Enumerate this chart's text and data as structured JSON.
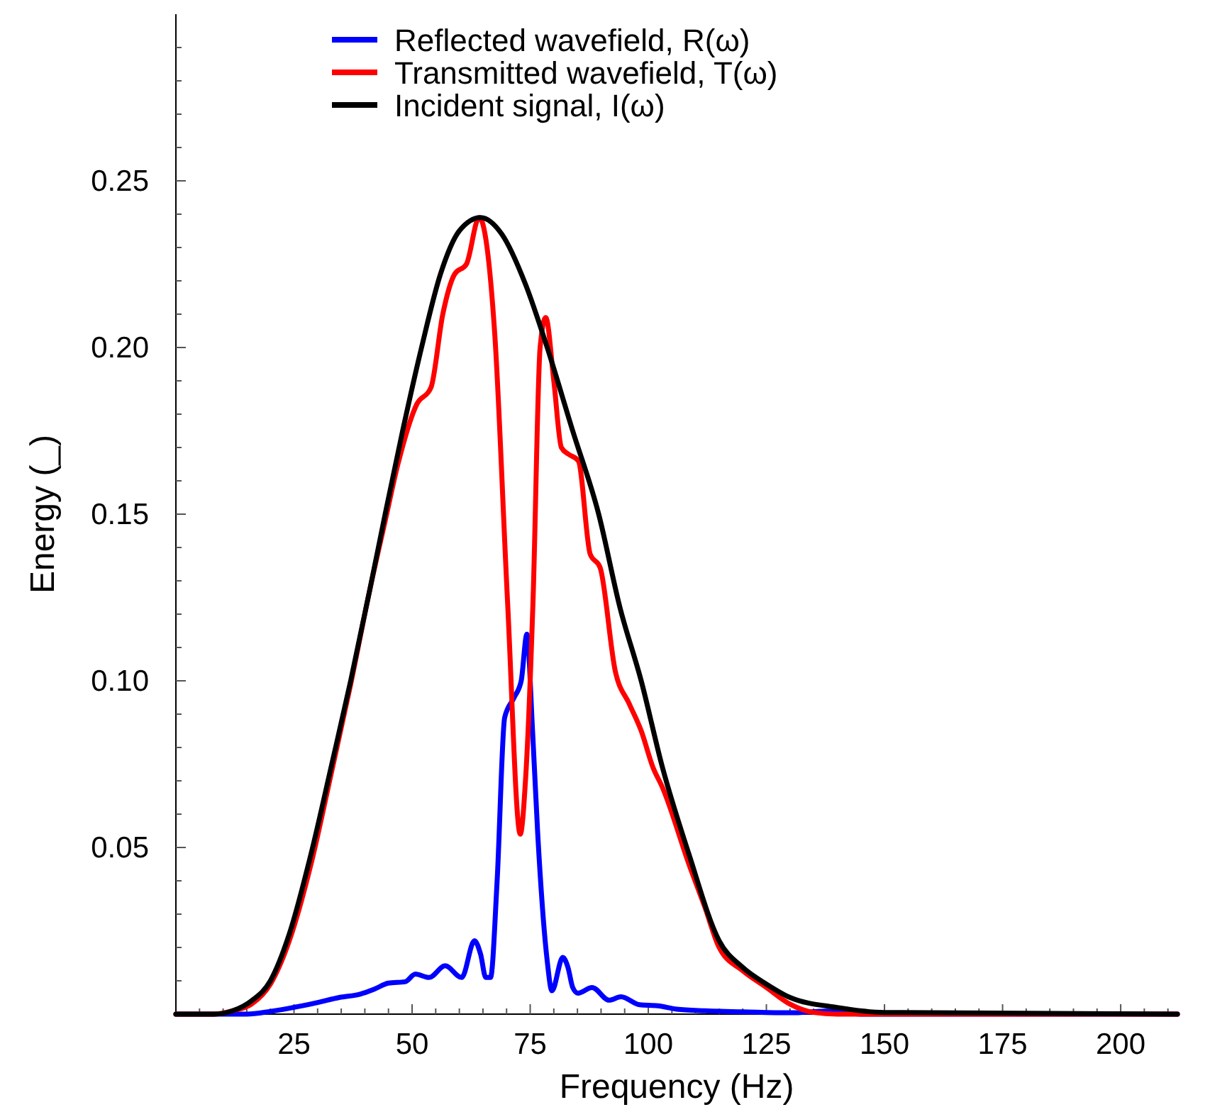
{
  "chart_data": {
    "type": "line",
    "xlabel": "Frequency (Hz)",
    "ylabel": "Energy (_)",
    "xlim": [
      0,
      212
    ],
    "ylim": [
      0,
      0.3
    ],
    "xticks": [
      {
        "value": 5,
        "label": null
      },
      {
        "value": 10,
        "label": null
      },
      {
        "value": 15,
        "label": null
      },
      {
        "value": 20,
        "label": null
      },
      25,
      {
        "value": 30,
        "label": null
      },
      {
        "value": 35,
        "label": null
      },
      {
        "value": 40,
        "label": null
      },
      {
        "value": 45,
        "label": null
      },
      50,
      {
        "value": 55,
        "label": null
      },
      {
        "value": 60,
        "label": null
      },
      {
        "value": 65,
        "label": null
      },
      {
        "value": 70,
        "label": null
      },
      75,
      {
        "value": 80,
        "label": null
      },
      {
        "value": 85,
        "label": null
      },
      {
        "value": 90,
        "label": null
      },
      {
        "value": 95,
        "label": null
      },
      100,
      {
        "value": 105,
        "label": null
      },
      {
        "value": 110,
        "label": null
      },
      {
        "value": 115,
        "label": null
      },
      {
        "value": 120,
        "label": null
      },
      125,
      {
        "value": 130,
        "label": null
      },
      {
        "value": 135,
        "label": null
      },
      {
        "value": 140,
        "label": null
      },
      {
        "value": 145,
        "label": null
      },
      150,
      {
        "value": 155,
        "label": null
      },
      {
        "value": 160,
        "label": null
      },
      {
        "value": 165,
        "label": null
      },
      {
        "value": 170,
        "label": null
      },
      175,
      {
        "value": 180,
        "label": null
      },
      {
        "value": 185,
        "label": null
      },
      {
        "value": 190,
        "label": null
      },
      {
        "value": 195,
        "label": null
      },
      200,
      {
        "value": 205,
        "label": null
      },
      {
        "value": 210,
        "label": null
      }
    ],
    "yticks": [
      {
        "value": 0.01,
        "label": null
      },
      {
        "value": 0.02,
        "label": null
      },
      {
        "value": 0.03,
        "label": null
      },
      {
        "value": 0.04,
        "label": null
      },
      0.05,
      {
        "value": 0.06,
        "label": null
      },
      {
        "value": 0.07,
        "label": null
      },
      {
        "value": 0.08,
        "label": null
      },
      {
        "value": 0.09,
        "label": null
      },
      {
        "value": 0.1,
        "label": "0.10"
      },
      {
        "value": 0.11,
        "label": null
      },
      {
        "value": 0.12,
        "label": null
      },
      {
        "value": 0.13,
        "label": null
      },
      {
        "value": 0.14,
        "label": null
      },
      0.15,
      {
        "value": 0.16,
        "label": null
      },
      {
        "value": 0.17,
        "label": null
      },
      {
        "value": 0.18,
        "label": null
      },
      {
        "value": 0.19,
        "label": null
      },
      {
        "value": 0.2,
        "label": "0.20"
      },
      {
        "value": 0.21,
        "label": null
      },
      {
        "value": 0.22,
        "label": null
      },
      {
        "value": 0.23,
        "label": null
      },
      {
        "value": 0.24,
        "label": null
      },
      0.25,
      {
        "value": 0.26,
        "label": null
      },
      {
        "value": 0.27,
        "label": null
      },
      {
        "value": 0.28,
        "label": null
      },
      {
        "value": 0.29,
        "label": null
      }
    ],
    "grid": false,
    "legend": "top",
    "marker": "none",
    "line_style": "solid",
    "series": [
      {
        "name": "Reflected wavefield, R(ω)",
        "color": "#0000ff",
        "x": [
          0,
          15,
          20,
          26,
          30,
          34.6,
          39,
          42,
          45,
          48.5,
          50.7,
          53.6,
          57,
          60.5,
          63.2,
          64.5,
          65.6,
          66.6,
          68,
          69.6,
          71.6,
          73.1,
          74.3,
          75.5,
          76.6,
          78.6,
          79.6,
          81.9,
          83,
          84,
          85.1,
          88.1,
          91.7,
          94.2,
          98.2,
          102,
          106,
          112,
          120,
          130,
          138,
          145,
          212
        ],
        "values": [
          0,
          0,
          0.0008,
          0.0023,
          0.0035,
          0.005,
          0.006,
          0.0075,
          0.0093,
          0.0097,
          0.012,
          0.011,
          0.0145,
          0.011,
          0.022,
          0.018,
          0.011,
          0.011,
          0.04,
          0.089,
          0.095,
          0.1,
          0.114,
          0.085,
          0.054,
          0.016,
          0.007,
          0.017,
          0.014,
          0.008,
          0.0063,
          0.008,
          0.0042,
          0.0052,
          0.0028,
          0.0025,
          0.0015,
          0.001,
          0.0007,
          0.0004,
          0.0009,
          0,
          0
        ]
      },
      {
        "name": "Transmitted wavefield, T(ω)",
        "color": "#ff0000",
        "x": [
          0,
          8,
          12,
          16,
          20,
          24,
          28.6,
          33,
          37,
          41,
          44.3,
          47,
          51,
          54,
          56.5,
          59,
          61.5,
          64.2,
          67.5,
          70.2,
          72.9,
          74,
          75.6,
          77.1,
          78.3,
          80,
          81.6,
          83.1,
          85.2,
          87.7,
          89.8,
          93,
          96,
          98.5,
          101,
          103,
          108.6,
          112,
          115,
          120,
          125,
          130,
          135,
          140,
          212
        ],
        "values": [
          0,
          0,
          0.001,
          0.003,
          0.009,
          0.022,
          0.045,
          0.073,
          0.099,
          0.127,
          0.148,
          0.165,
          0.183,
          0.188,
          0.21,
          0.222,
          0.225,
          0.239,
          0.204,
          0.124,
          0.054,
          0.07,
          0.124,
          0.2,
          0.209,
          0.19,
          0.17,
          0.168,
          0.166,
          0.138,
          0.134,
          0.103,
          0.093,
          0.085,
          0.074,
          0.068,
          0.045,
          0.032,
          0.02,
          0.013,
          0.008,
          0.003,
          0.0005,
          0,
          0
        ]
      },
      {
        "name": "Incident signal, I(ω)",
        "color": "#000000",
        "x": [
          0,
          8,
          12,
          16,
          20,
          24,
          28.6,
          33,
          37,
          41,
          44.3,
          48,
          52,
          56,
          60,
          64.5,
          69,
          74,
          78.6,
          84,
          89.5,
          94,
          98.5,
          103,
          108.6,
          115,
          120,
          125,
          130,
          140,
          150,
          212
        ],
        "values": [
          0,
          0,
          0.001,
          0.004,
          0.01,
          0.024,
          0.048,
          0.075,
          0.1,
          0.127,
          0.15,
          0.175,
          0.2,
          0.222,
          0.235,
          0.239,
          0.234,
          0.219,
          0.2,
          0.175,
          0.15,
          0.122,
          0.1,
          0.074,
          0.048,
          0.022,
          0.014,
          0.009,
          0.005,
          0.002,
          0.0005,
          0
        ]
      }
    ]
  }
}
